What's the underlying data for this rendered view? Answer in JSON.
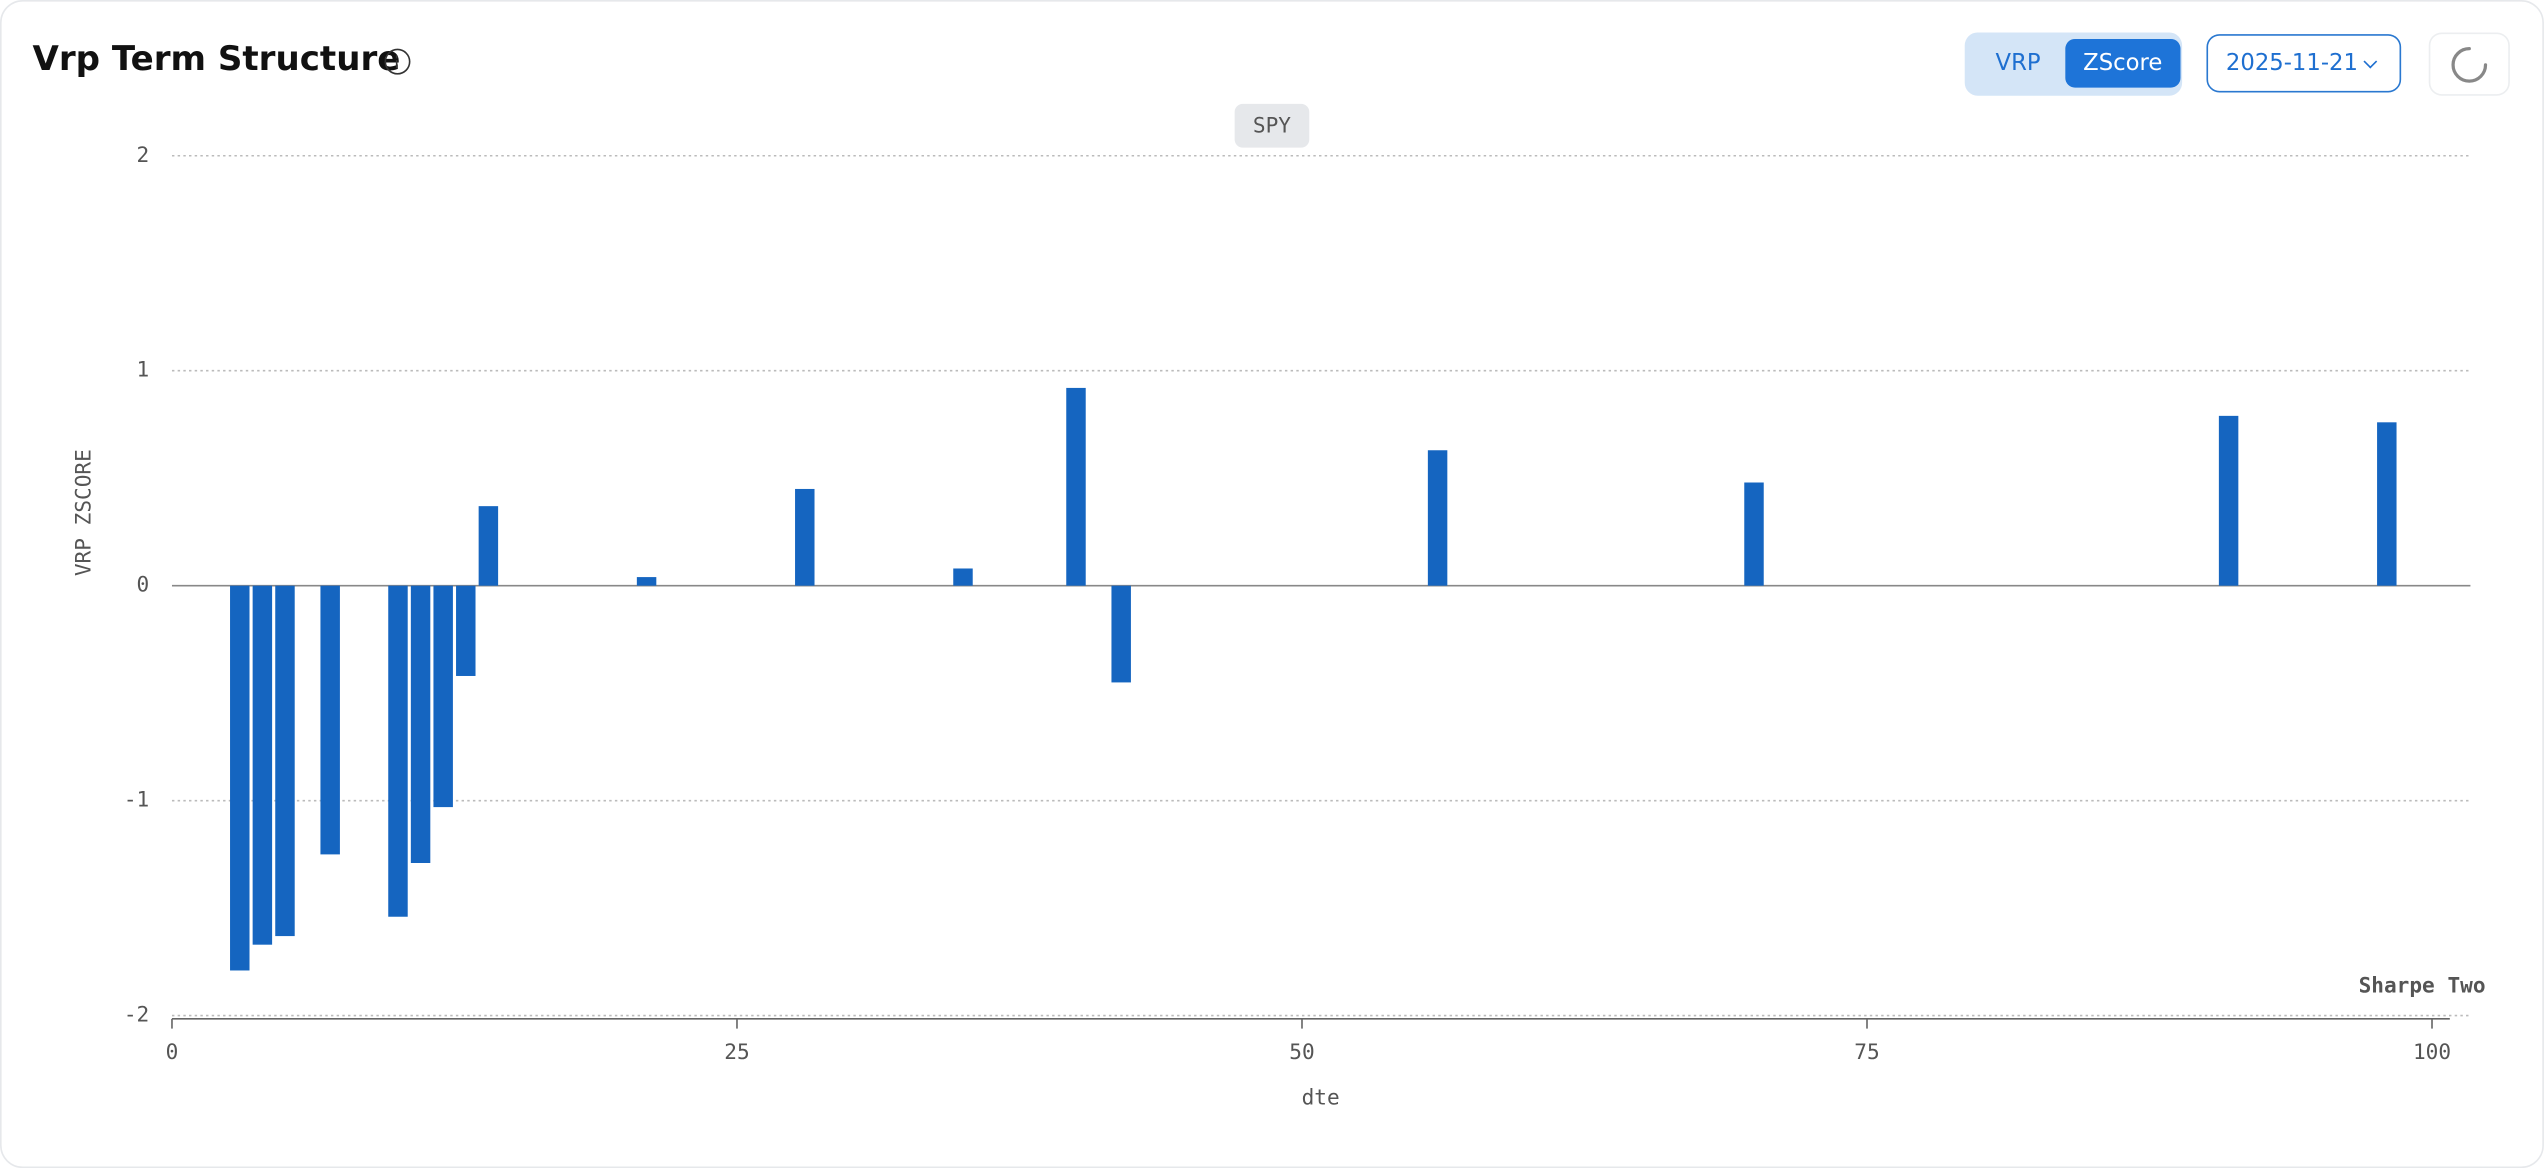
{
  "header": {
    "title": "Vrp Term Structure"
  },
  "controls": {
    "toggle": [
      "VRP",
      "ZScore"
    ],
    "active": 1,
    "date": "2025-11-21"
  },
  "chart_data": {
    "type": "bar",
    "series": [
      {
        "name": "SPY",
        "color": "#1565c0",
        "x": [
          3,
          4,
          5,
          7,
          10,
          11,
          12,
          13,
          14,
          21,
          28,
          35,
          40,
          42,
          56,
          70,
          91,
          98
        ],
        "values": [
          -1.79,
          -1.67,
          -1.63,
          -1.25,
          -1.54,
          -1.29,
          -1.03,
          -0.42,
          0.37,
          0.04,
          0.45,
          0.08,
          0.92,
          -0.45,
          0.63,
          0.48,
          0.79,
          0.76
        ]
      }
    ],
    "xlabel": "dte",
    "ylabel": "VRP  ZSCORE",
    "xlim": [
      0,
      101.7
    ],
    "xticks": [
      0,
      25,
      50,
      75,
      100
    ],
    "ylim": [
      -2,
      2
    ],
    "yticks": [
      -2,
      -1,
      0,
      1,
      2
    ],
    "grid": true,
    "watermark": "Sharpe Two"
  }
}
